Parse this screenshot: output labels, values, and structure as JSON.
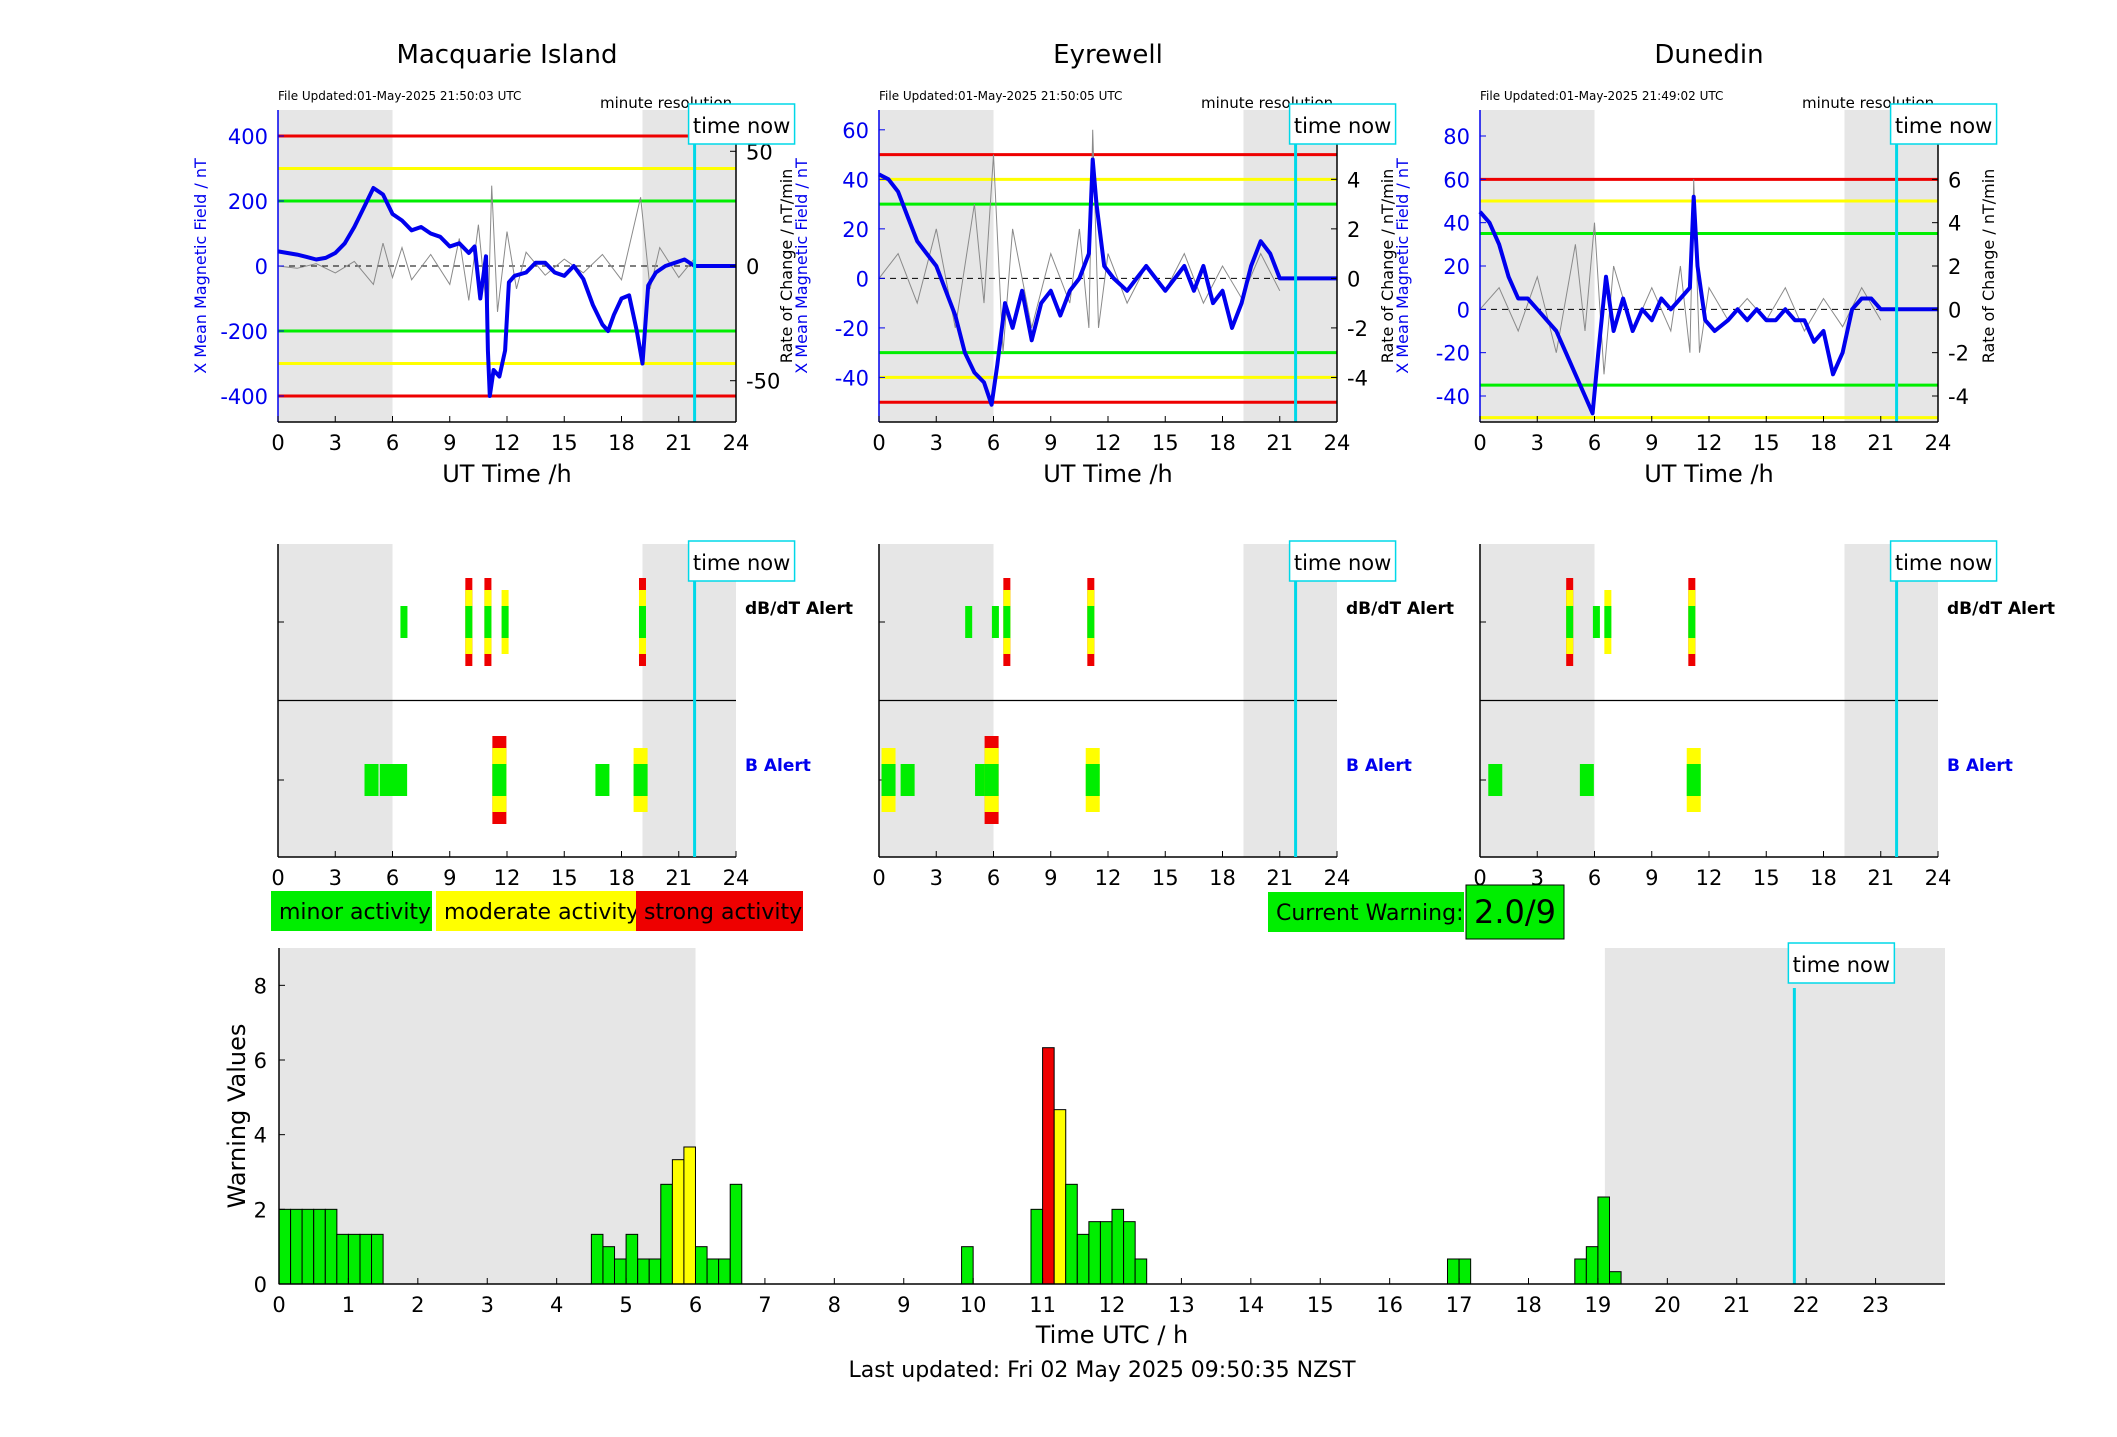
{
  "colors": {
    "field": "#0000ee",
    "rate": "#8a8a8a",
    "red": "#ee0000",
    "yellow": "#ffff00",
    "green": "#00ee00",
    "cyan": "#00d8e8",
    "shade": "#e6e6e6"
  },
  "common": {
    "time_now_label": "time now",
    "minute_resolution": "minute resolution",
    "x_axis_label": "UT Time /h",
    "left_axis_label": "X Mean Magnetic Field / nT",
    "right_axis_label": "Rate of Change / nT/min",
    "dbdt_label": "dB/dT Alert",
    "b_label": "B Alert",
    "x_ticks": [
      "0",
      "3",
      "6",
      "9",
      "12",
      "15",
      "18",
      "21",
      "24"
    ],
    "time_now_hour": 21.83
  },
  "stations": [
    {
      "title": "Macquarie Island",
      "file_updated": "File Updated:01-May-2025 21:50:03 UTC",
      "left_ticks": [
        "400",
        "200",
        "0",
        "-200",
        "-400"
      ],
      "right_ticks": [
        "50",
        "0",
        "-50"
      ]
    },
    {
      "title": "Eyrewell",
      "file_updated": "File Updated:01-May-2025 21:50:05 UTC",
      "left_ticks": [
        "60",
        "40",
        "20",
        "0",
        "-20",
        "-40"
      ],
      "right_ticks": [
        "6",
        "4",
        "2",
        "0",
        "-2",
        "-4"
      ]
    },
    {
      "title": "Dunedin",
      "file_updated": "File Updated:01-May-2025 21:49:02 UTC",
      "left_ticks": [
        "80",
        "60",
        "40",
        "20",
        "0",
        "-20",
        "-40"
      ],
      "right_ticks": [
        "8",
        "6",
        "4",
        "2",
        "0",
        "-2",
        "-4"
      ]
    }
  ],
  "legend": {
    "minor": "minor activity",
    "moderate": "moderate activity",
    "strong": "strong activity"
  },
  "current_warning": {
    "label": "Current Warning:",
    "value": "2.0/9"
  },
  "footer": {
    "last_updated": "Last updated: Fri 02 May 2025 09:50:35 NZST"
  },
  "chart_data": [
    {
      "type": "line",
      "station": "Macquarie Island",
      "ylabel": "X Mean Magnetic Field / nT",
      "y2label": "Rate of Change / nT/min",
      "xlabel": "UT Time /h",
      "xlim": [
        0,
        24
      ],
      "ylim": [
        -480,
        480
      ],
      "y2lim": [
        -68,
        68
      ],
      "shaded_hours": [
        [
          0,
          6
        ],
        [
          19.1,
          24
        ]
      ],
      "thresholds": {
        "red": [
          400,
          -400
        ],
        "yellow": [
          300,
          -300
        ],
        "green": [
          200,
          -200
        ]
      },
      "field_series": {
        "x": [
          0,
          0.5,
          1,
          1.5,
          2,
          2.5,
          3,
          3.5,
          4,
          4.5,
          5,
          5.5,
          6,
          6.5,
          7,
          7.5,
          8,
          8.5,
          9,
          9.5,
          10,
          10.3,
          10.6,
          10.9,
          11.0,
          11.1,
          11.3,
          11.6,
          11.9,
          12.1,
          12.4,
          13,
          13.5,
          14,
          14.5,
          15,
          15.5,
          16,
          16.5,
          17,
          17.3,
          17.6,
          18,
          18.4,
          18.8,
          19.1,
          19.4,
          19.8,
          20.3,
          20.8,
          21.3,
          21.83,
          24
        ],
        "y": [
          45,
          40,
          35,
          28,
          20,
          25,
          40,
          70,
          120,
          180,
          240,
          220,
          160,
          140,
          110,
          120,
          100,
          90,
          60,
          70,
          40,
          60,
          -100,
          30,
          -260,
          -400,
          -320,
          -340,
          -260,
          -50,
          -30,
          -20,
          10,
          10,
          -20,
          -30,
          0,
          -40,
          -120,
          -180,
          -200,
          -150,
          -100,
          -90,
          -200,
          -300,
          -60,
          -20,
          0,
          10,
          20,
          0,
          0
        ]
      },
      "rate_series": {
        "x": [
          0,
          1,
          2,
          3,
          4,
          5,
          5.5,
          6,
          6.5,
          7,
          8,
          9,
          9.5,
          10,
          10.5,
          11,
          11.2,
          11.5,
          12,
          12.5,
          13,
          14,
          15,
          16,
          17,
          18,
          19,
          19.5,
          20,
          21,
          21.8
        ],
        "y": [
          0,
          -1,
          1,
          -3,
          2,
          -8,
          10,
          -5,
          8,
          -6,
          5,
          -8,
          12,
          -15,
          18,
          -25,
          35,
          -20,
          15,
          -10,
          6,
          -4,
          3,
          -3,
          5,
          -6,
          30,
          -10,
          8,
          -5,
          3
        ]
      },
      "dbdt_alert_bars": [
        {
          "hour": 6.6,
          "level": "minor"
        },
        {
          "hour": 10.0,
          "level": "strong"
        },
        {
          "hour": 11.0,
          "level": "strong"
        },
        {
          "hour": 11.9,
          "level": "moderate"
        },
        {
          "hour": 19.1,
          "level": "strong"
        }
      ],
      "b_alert_bars": [
        {
          "hour": 4.9,
          "level": "minor"
        },
        {
          "hour": 5.7,
          "level": "minor"
        },
        {
          "hour": 6.4,
          "level": "minor"
        },
        {
          "hour": 11.6,
          "level": "strong"
        },
        {
          "hour": 17.0,
          "level": "minor"
        },
        {
          "hour": 19.0,
          "level": "moderate"
        }
      ]
    },
    {
      "type": "line",
      "station": "Eyrewell",
      "ylabel": "X Mean Magnetic Field / nT",
      "y2label": "Rate of Change / nT/min",
      "xlabel": "UT Time /h",
      "xlim": [
        0,
        24
      ],
      "ylim": [
        -58,
        68
      ],
      "y2lim": [
        -5.8,
        6.8
      ],
      "shaded_hours": [
        [
          0,
          6
        ],
        [
          19.1,
          24
        ]
      ],
      "thresholds": {
        "red": [
          50,
          -50
        ],
        "yellow": [
          40,
          -40
        ],
        "green": [
          30,
          -30
        ]
      },
      "field_series": {
        "x": [
          0,
          0.5,
          1,
          1.5,
          2,
          2.5,
          3,
          3.5,
          4,
          4.5,
          5,
          5.5,
          5.9,
          6.2,
          6.6,
          7,
          7.5,
          8,
          8.5,
          9,
          9.5,
          10,
          10.5,
          11,
          11.2,
          11.4,
          11.8,
          12.3,
          13,
          13.5,
          14,
          14.5,
          15,
          15.5,
          16,
          16.5,
          17,
          17.5,
          18,
          18.5,
          19,
          19.5,
          20,
          20.5,
          21,
          21.83,
          24
        ],
        "y": [
          42,
          40,
          35,
          25,
          15,
          10,
          5,
          -5,
          -15,
          -30,
          -38,
          -42,
          -51,
          -35,
          -10,
          -20,
          -5,
          -25,
          -10,
          -5,
          -15,
          -5,
          0,
          10,
          48,
          30,
          5,
          0,
          -5,
          0,
          5,
          0,
          -5,
          0,
          5,
          -5,
          5,
          -10,
          -5,
          -20,
          -10,
          5,
          15,
          10,
          0,
          0,
          0
        ]
      },
      "rate_series": {
        "x": [
          0,
          1,
          2,
          3,
          4,
          5,
          5.5,
          6,
          6.5,
          7,
          8,
          9,
          10,
          10.5,
          11,
          11.2,
          11.5,
          12,
          13,
          14,
          15,
          16,
          17,
          18,
          19,
          20,
          21
        ],
        "y": [
          0,
          1,
          -1,
          2,
          -2,
          3,
          -1,
          5,
          -3,
          2,
          -2,
          1,
          -1,
          2,
          -2,
          6,
          -2,
          1,
          -1,
          0.5,
          -0.5,
          1,
          -1,
          0.5,
          -0.8,
          1,
          -0.5
        ]
      },
      "dbdt_alert_bars": [
        {
          "hour": 4.7,
          "level": "minor"
        },
        {
          "hour": 6.1,
          "level": "minor"
        },
        {
          "hour": 6.7,
          "level": "strong"
        },
        {
          "hour": 11.1,
          "level": "strong"
        }
      ],
      "b_alert_bars": [
        {
          "hour": 0.5,
          "level": "moderate"
        },
        {
          "hour": 1.5,
          "level": "minor"
        },
        {
          "hour": 5.4,
          "level": "minor"
        },
        {
          "hour": 5.9,
          "level": "strong"
        },
        {
          "hour": 11.2,
          "level": "moderate"
        }
      ]
    },
    {
      "type": "line",
      "station": "Dunedin",
      "ylabel": "X Mean Magnetic Field / nT",
      "y2label": "Rate of Change / nT/min",
      "xlabel": "UT Time /h",
      "xlim": [
        0,
        24
      ],
      "ylim": [
        -52,
        92
      ],
      "y2lim": [
        -5.2,
        9.2
      ],
      "shaded_hours": [
        [
          0,
          6
        ],
        [
          19.1,
          24
        ]
      ],
      "thresholds": {
        "red": [
          60
        ],
        "yellow": [
          50,
          -50
        ],
        "green": [
          35,
          -35
        ]
      },
      "field_series": {
        "x": [
          0,
          0.5,
          1,
          1.5,
          2,
          2.5,
          3,
          3.5,
          4,
          4.5,
          5,
          5.5,
          5.9,
          6.2,
          6.6,
          7,
          7.5,
          8,
          8.5,
          9,
          9.5,
          10,
          10.5,
          11,
          11.2,
          11.4,
          11.8,
          12.3,
          13,
          13.5,
          14,
          14.5,
          15,
          15.5,
          16,
          16.5,
          17,
          17.5,
          18,
          18.5,
          19,
          19.5,
          20,
          20.5,
          21,
          21.83,
          24
        ],
        "y": [
          45,
          40,
          30,
          15,
          5,
          5,
          0,
          -5,
          -10,
          -20,
          -30,
          -40,
          -48,
          -20,
          15,
          -10,
          5,
          -10,
          0,
          -5,
          5,
          0,
          5,
          10,
          52,
          20,
          -5,
          -10,
          -5,
          0,
          -5,
          0,
          -5,
          -5,
          0,
          -5,
          -5,
          -15,
          -10,
          -30,
          -20,
          0,
          5,
          5,
          0,
          0,
          0
        ]
      },
      "rate_series": {
        "x": [
          0,
          1,
          2,
          3,
          4,
          5,
          5.5,
          6,
          6.5,
          7,
          8,
          9,
          10,
          10.5,
          11,
          11.2,
          11.5,
          12,
          13,
          14,
          15,
          16,
          17,
          18,
          19,
          20,
          21
        ],
        "y": [
          0,
          1,
          -1,
          1.5,
          -2,
          3,
          -1,
          4,
          -3,
          2,
          -1,
          1,
          -1,
          2,
          -2,
          6,
          -2,
          1,
          -0.5,
          0.5,
          -0.5,
          1,
          -1,
          0.5,
          -0.8,
          1,
          -0.5
        ]
      },
      "dbdt_alert_bars": [
        {
          "hour": 4.7,
          "level": "strong"
        },
        {
          "hour": 6.1,
          "level": "minor"
        },
        {
          "hour": 6.7,
          "level": "moderate"
        },
        {
          "hour": 11.1,
          "level": "strong"
        }
      ],
      "b_alert_bars": [
        {
          "hour": 0.8,
          "level": "minor"
        },
        {
          "hour": 5.6,
          "level": "minor"
        },
        {
          "hour": 11.2,
          "level": "moderate"
        }
      ]
    },
    {
      "type": "bar",
      "title": "",
      "xlabel": "Time UTC / h",
      "ylabel": "Warning Values",
      "xlim": [
        0,
        24
      ],
      "ylim": [
        0,
        9
      ],
      "x_ticks": [
        "0",
        "1",
        "2",
        "3",
        "4",
        "5",
        "6",
        "7",
        "8",
        "9",
        "10",
        "11",
        "12",
        "13",
        "14",
        "15",
        "16",
        "17",
        "18",
        "19",
        "20",
        "21",
        "22",
        "23"
      ],
      "y_ticks": [
        "0",
        "2",
        "4",
        "6",
        "8"
      ],
      "shaded_hours": [
        [
          0,
          6
        ],
        [
          19.1,
          24
        ]
      ],
      "time_now_hour": 21.83,
      "bin_width_hours": 0.1667,
      "bars": [
        {
          "x": 0.0,
          "value": 2,
          "level": "minor"
        },
        {
          "x": 0.167,
          "value": 2,
          "level": "minor"
        },
        {
          "x": 0.333,
          "value": 2,
          "level": "minor"
        },
        {
          "x": 0.5,
          "value": 2,
          "level": "minor"
        },
        {
          "x": 0.667,
          "value": 2,
          "level": "minor"
        },
        {
          "x": 0.833,
          "value": 1.33,
          "level": "minor"
        },
        {
          "x": 1.0,
          "value": 1.33,
          "level": "minor"
        },
        {
          "x": 1.167,
          "value": 1.33,
          "level": "minor"
        },
        {
          "x": 1.333,
          "value": 1.33,
          "level": "minor"
        },
        {
          "x": 4.5,
          "value": 1.33,
          "level": "minor"
        },
        {
          "x": 4.667,
          "value": 1.0,
          "level": "minor"
        },
        {
          "x": 4.833,
          "value": 0.67,
          "level": "minor"
        },
        {
          "x": 5.0,
          "value": 1.33,
          "level": "minor"
        },
        {
          "x": 5.167,
          "value": 0.67,
          "level": "minor"
        },
        {
          "x": 5.333,
          "value": 0.67,
          "level": "minor"
        },
        {
          "x": 5.5,
          "value": 2.67,
          "level": "minor"
        },
        {
          "x": 5.667,
          "value": 3.33,
          "level": "moderate"
        },
        {
          "x": 5.833,
          "value": 3.67,
          "level": "moderate"
        },
        {
          "x": 6.0,
          "value": 1.0,
          "level": "minor"
        },
        {
          "x": 6.167,
          "value": 0.67,
          "level": "minor"
        },
        {
          "x": 6.333,
          "value": 0.67,
          "level": "minor"
        },
        {
          "x": 6.5,
          "value": 2.67,
          "level": "minor"
        },
        {
          "x": 9.833,
          "value": 1.0,
          "level": "minor"
        },
        {
          "x": 10.833,
          "value": 2.0,
          "level": "minor"
        },
        {
          "x": 11.0,
          "value": 6.33,
          "level": "strong"
        },
        {
          "x": 11.167,
          "value": 4.67,
          "level": "moderate"
        },
        {
          "x": 11.333,
          "value": 2.67,
          "level": "minor"
        },
        {
          "x": 11.5,
          "value": 1.33,
          "level": "minor"
        },
        {
          "x": 11.667,
          "value": 1.67,
          "level": "minor"
        },
        {
          "x": 11.833,
          "value": 1.67,
          "level": "minor"
        },
        {
          "x": 12.0,
          "value": 2.0,
          "level": "minor"
        },
        {
          "x": 12.167,
          "value": 1.67,
          "level": "minor"
        },
        {
          "x": 12.333,
          "value": 0.67,
          "level": "minor"
        },
        {
          "x": 16.833,
          "value": 0.67,
          "level": "minor"
        },
        {
          "x": 17.0,
          "value": 0.67,
          "level": "minor"
        },
        {
          "x": 18.667,
          "value": 0.67,
          "level": "minor"
        },
        {
          "x": 18.833,
          "value": 1.0,
          "level": "minor"
        },
        {
          "x": 19.0,
          "value": 2.33,
          "level": "minor"
        },
        {
          "x": 19.167,
          "value": 0.33,
          "level": "minor"
        }
      ]
    }
  ]
}
